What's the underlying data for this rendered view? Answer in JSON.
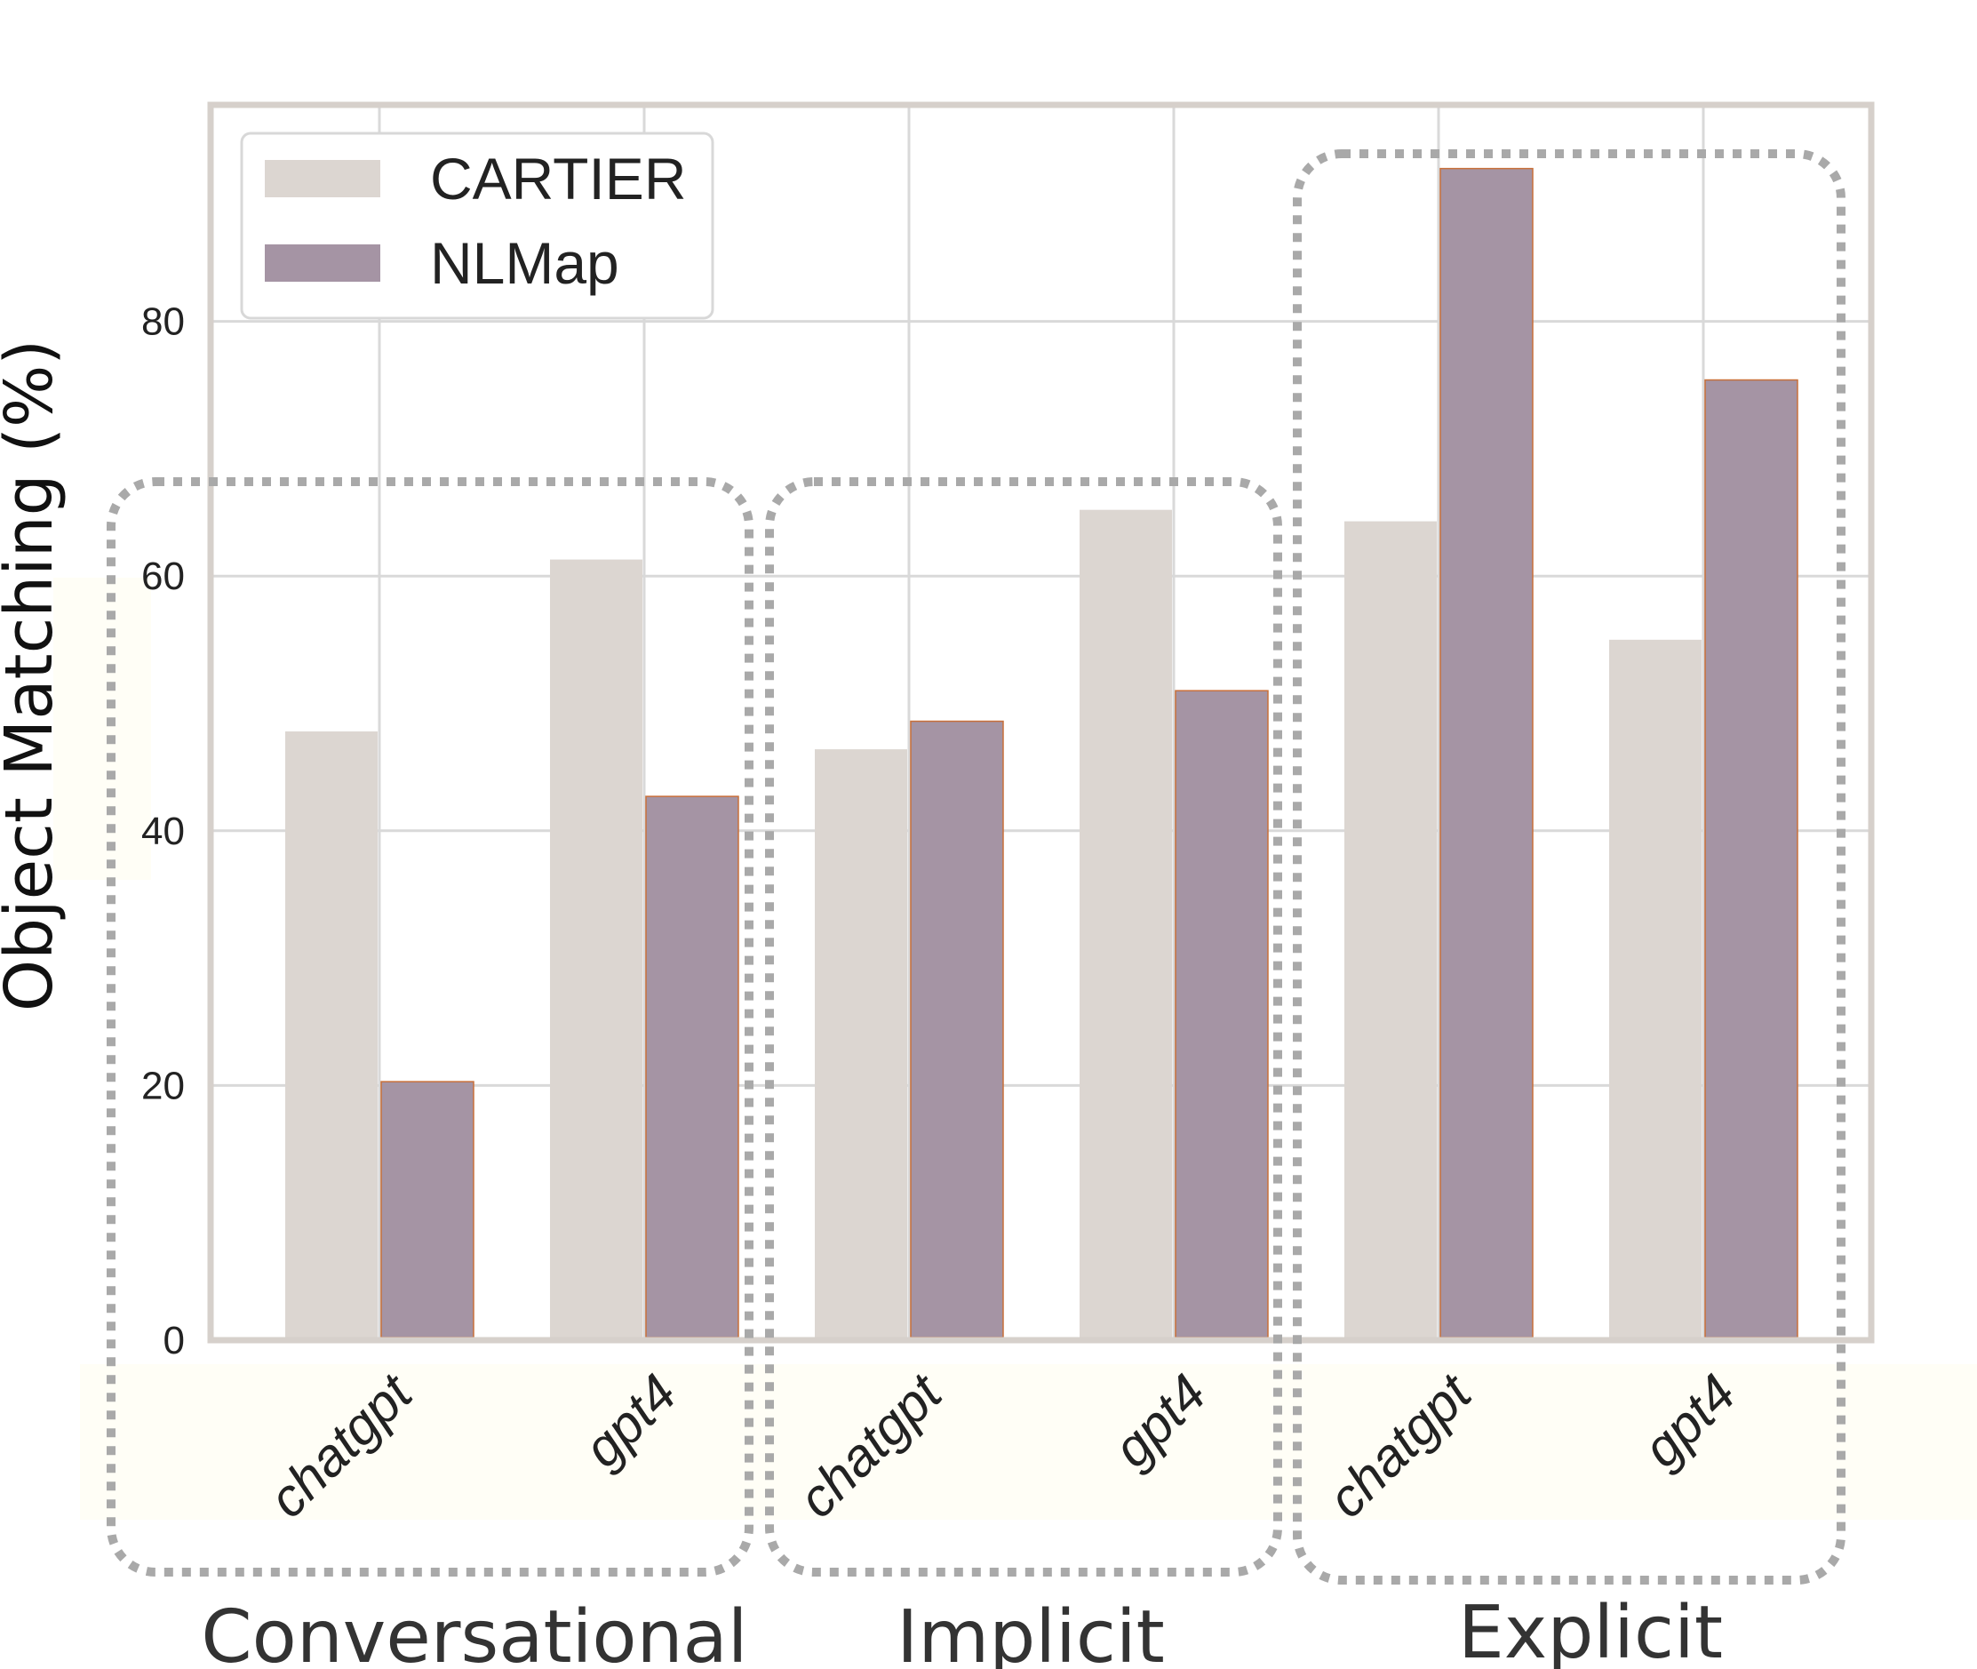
{
  "chart_data": {
    "type": "bar",
    "ylabel": "Object Matching (%)",
    "ylim": [
      0,
      97
    ],
    "yticks": [
      0,
      20,
      40,
      60,
      80
    ],
    "grid": true,
    "legend_position": "top-left",
    "groups": [
      {
        "label": "Conversational",
        "categories": [
          "chatgpt",
          "gpt4"
        ]
      },
      {
        "label": "Implicit",
        "categories": [
          "chatgpt",
          "gpt4"
        ]
      },
      {
        "label": "Explicit",
        "categories": [
          "chatgpt",
          "gpt4"
        ]
      }
    ],
    "series": [
      {
        "name": "CARTIER",
        "color": "#dcd6d1",
        "values": [
          47.8,
          61.3,
          46.4,
          65.2,
          64.3,
          55.0
        ]
      },
      {
        "name": "NLMap",
        "color": "#a594a4",
        "values": [
          20.3,
          42.7,
          48.6,
          51.0,
          92.0,
          75.4
        ]
      }
    ]
  }
}
